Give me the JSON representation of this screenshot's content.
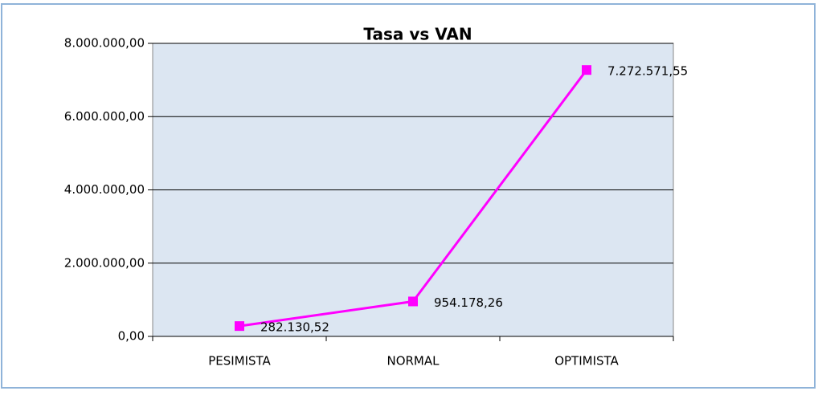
{
  "chart_data": {
    "type": "line",
    "title": "Tasa vs VAN",
    "categories": [
      "PESIMISTA",
      "NORMAL",
      "OPTIMISTA"
    ],
    "series": [
      {
        "name": "VAN",
        "color": "#ff00ff",
        "values": [
          282130.52,
          954178.26,
          7272571.55
        ],
        "value_labels": [
          "282.130,52",
          "954.178,26",
          "7.272.571,55"
        ]
      }
    ],
    "ylim": [
      0,
      8000000
    ],
    "yticks": [
      {
        "value": 0,
        "label": "0,00"
      },
      {
        "value": 2000000,
        "label": "2.000.000,00"
      },
      {
        "value": 4000000,
        "label": "4.000.000,00"
      },
      {
        "value": 6000000,
        "label": "6.000.000,00"
      },
      {
        "value": 8000000,
        "label": "8.000.000,00"
      }
    ],
    "grid": true
  }
}
